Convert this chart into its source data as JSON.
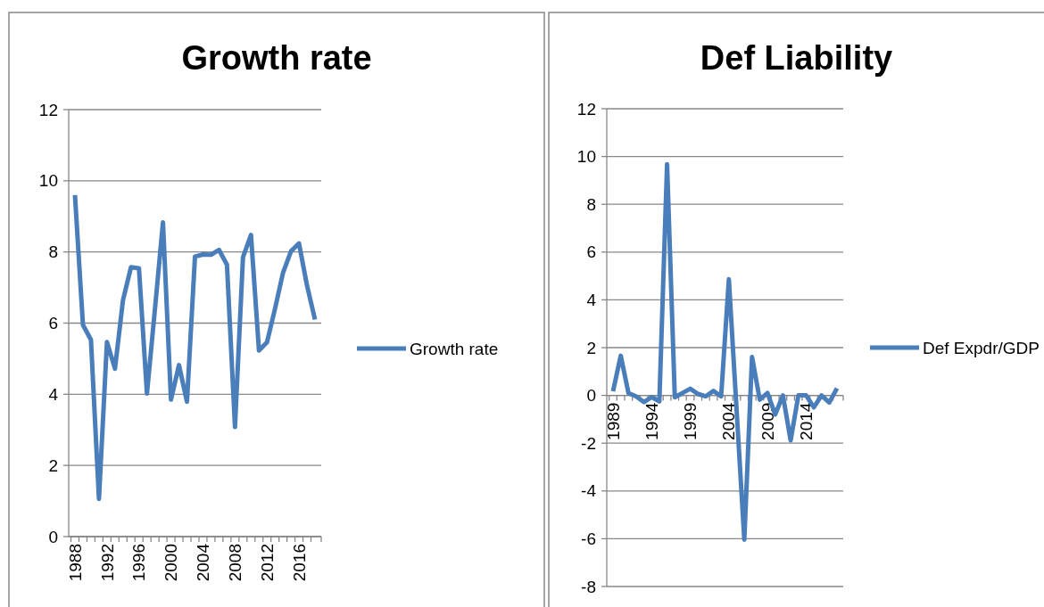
{
  "chart_data": [
    {
      "type": "line",
      "title": "Growth rate",
      "categories": [
        "1988",
        null,
        null,
        null,
        "1992",
        null,
        null,
        null,
        "1996",
        null,
        null,
        null,
        "2000",
        null,
        null,
        null,
        "2004",
        null,
        null,
        null,
        "2008",
        null,
        null,
        null,
        "2012",
        null,
        null,
        null,
        "2016",
        null,
        null
      ],
      "series": [
        {
          "name": "Growth rate",
          "color": "#4a7ebb",
          "values": [
            9.6,
            5.95,
            5.53,
            1.06,
            5.47,
            4.72,
            6.64,
            7.57,
            7.54,
            4.02,
            6.4,
            8.83,
            3.85,
            4.82,
            3.79,
            7.87,
            7.93,
            7.92,
            8.06,
            7.64,
            3.08,
            7.85,
            8.48,
            5.23,
            5.46,
            6.4,
            7.41,
            8.02,
            8.24,
            7.06,
            6.1
          ]
        }
      ],
      "ylim": [
        0,
        12
      ],
      "yticks": [
        0,
        2,
        4,
        6,
        8,
        10,
        12
      ],
      "grid": "y",
      "legend": "right",
      "marker": "none",
      "line_style": "solid"
    },
    {
      "type": "line",
      "title": "Def Liability",
      "categories": [
        "1989",
        null,
        null,
        null,
        null,
        "1994",
        null,
        null,
        null,
        null,
        "1999",
        null,
        null,
        null,
        null,
        "2004",
        null,
        null,
        null,
        null,
        "2009",
        null,
        null,
        null,
        null,
        "2014",
        null,
        null,
        null,
        null
      ],
      "series": [
        {
          "name": "Def Expdr/GDP",
          "color": "#4a7ebb",
          "values": [
            0.17,
            1.66,
            0.1,
            -0.04,
            -0.28,
            -0.07,
            -0.25,
            9.68,
            -0.08,
            0.1,
            0.28,
            0.06,
            -0.04,
            0.19,
            -0.04,
            4.86,
            -0.6,
            -6.04,
            1.61,
            -0.18,
            0.1,
            -0.8,
            0,
            -1.88,
            0,
            0,
            -0.5,
            0,
            -0.3,
            0.3
          ]
        }
      ],
      "ylim": [
        -8,
        12
      ],
      "yticks": [
        -8,
        -6,
        -4,
        -2,
        0,
        2,
        4,
        6,
        8,
        10,
        12
      ],
      "grid": "y",
      "legend": "right",
      "marker": "none",
      "line_style": "solid"
    }
  ]
}
